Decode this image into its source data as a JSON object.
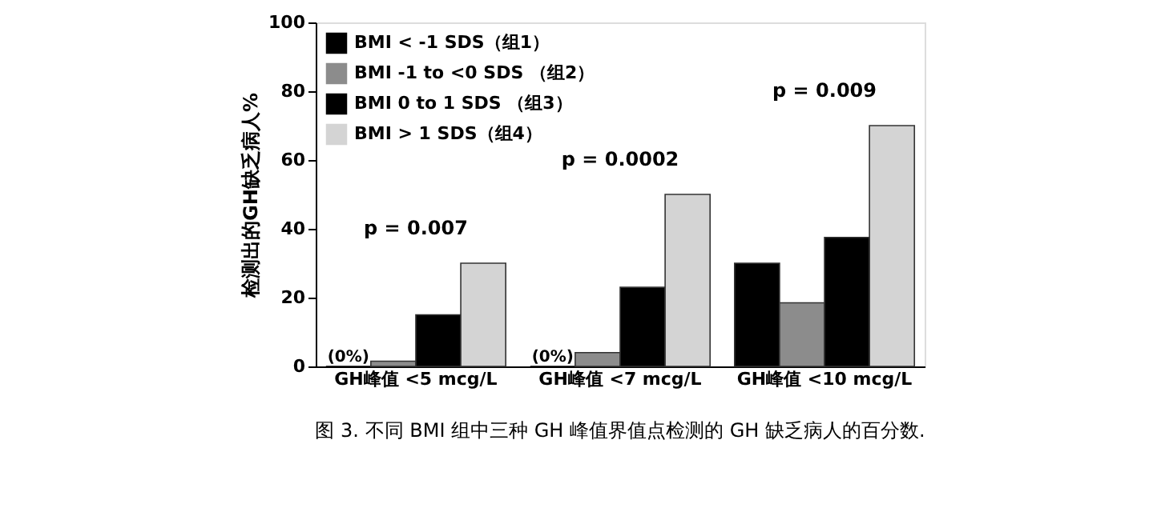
{
  "chart_data": {
    "type": "bar",
    "ylabel": "检测出的GH缺乏病人%",
    "categories": [
      "GH峰值 <5 mcg/L",
      "GH峰值 <7 mcg/L",
      "GH峰值 <10 mcg/L"
    ],
    "series": [
      {
        "name": "BMI < -1 SDS（组1）",
        "color": "#000000",
        "values": [
          0,
          0,
          30
        ],
        "value_labels": [
          "(0%)",
          "(0%)",
          null
        ]
      },
      {
        "name": "BMI -1 to <0 SDS （组2）",
        "color": "#8c8c8c",
        "values": [
          1.5,
          4,
          18.5
        ]
      },
      {
        "name": "BMI 0 to 1 SDS （组3）",
        "color": "#000000",
        "values": [
          15,
          23,
          37.5
        ]
      },
      {
        "name": "BMI > 1 SDS（组4）",
        "color": "#d4d4d4",
        "values": [
          30,
          50,
          70
        ]
      }
    ],
    "ylim": [
      0,
      100
    ],
    "yticks": [
      0,
      20,
      40,
      60,
      80,
      100
    ],
    "grid": false,
    "legend": "top left",
    "annotations": [
      "p = 0.007",
      "p = 0.0002",
      "p = 0.009",
      "图 3. 不同 BMI 组中三种 GH 峰值界值点检测的 GH 缺乏病人的百分数."
    ]
  }
}
